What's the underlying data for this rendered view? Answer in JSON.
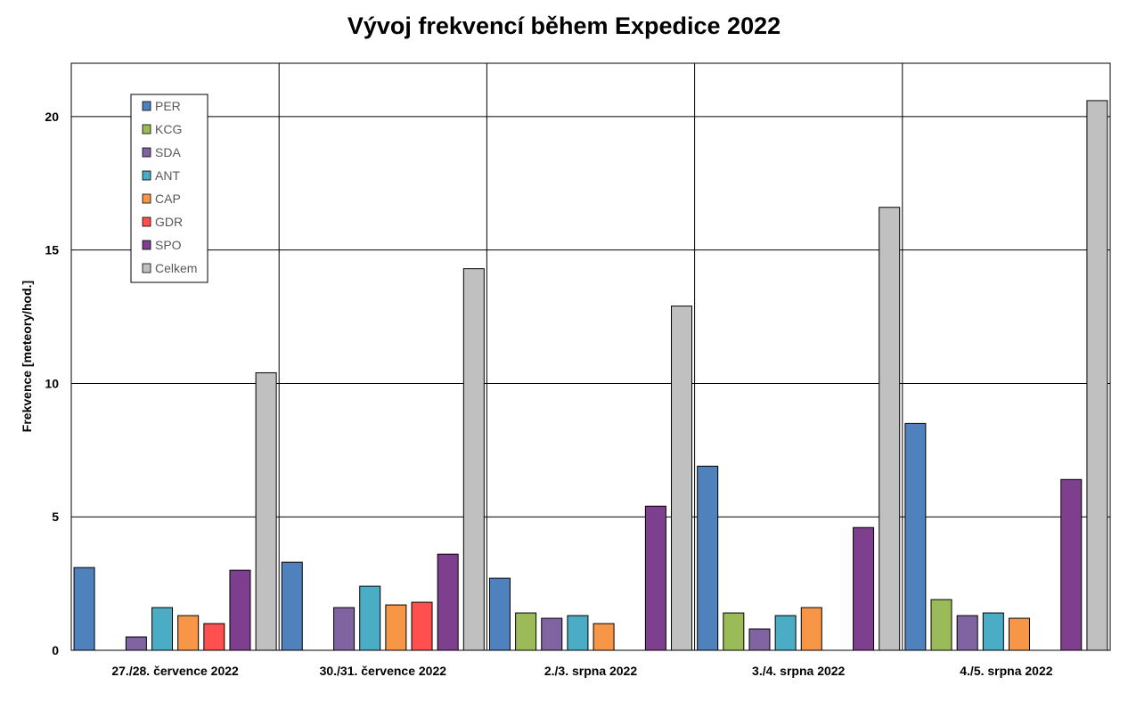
{
  "chart_data": {
    "type": "bar",
    "title": "Vývoj frekvencí během Expedice 2022",
    "xlabel": "",
    "ylabel": "Frekvence [meteory/hod.]",
    "ylim": [
      0,
      22
    ],
    "yticks": [
      0,
      5,
      10,
      15,
      20
    ],
    "grid": true,
    "legend_position": "top-left",
    "categories": [
      "27./28. července 2022",
      "30./31. července 2022",
      "2./3. srpna 2022",
      "3./4. srpna 2022",
      "4./5. srpna 2022"
    ],
    "series": [
      {
        "name": "PER",
        "color": "#4f81bd",
        "values": [
          3.1,
          3.3,
          2.7,
          6.9,
          8.5
        ]
      },
      {
        "name": "KCG",
        "color": "#9bbb59",
        "values": [
          null,
          null,
          1.4,
          1.4,
          1.9
        ]
      },
      {
        "name": "SDA",
        "color": "#8064a2",
        "values": [
          0.5,
          1.6,
          1.2,
          0.8,
          1.3
        ]
      },
      {
        "name": "ANT",
        "color": "#4bacc6",
        "values": [
          1.6,
          2.4,
          1.3,
          1.3,
          1.4
        ]
      },
      {
        "name": "CAP",
        "color": "#f79646",
        "values": [
          1.3,
          1.7,
          1.0,
          1.6,
          1.2
        ]
      },
      {
        "name": "GDR",
        "color": "#ff4f4f",
        "values": [
          1.0,
          1.8,
          null,
          null,
          null
        ]
      },
      {
        "name": "SPO",
        "color": "#7f3f8f",
        "values": [
          3.0,
          3.6,
          5.4,
          4.6,
          6.4
        ]
      },
      {
        "name": "Celkem",
        "color": "#c0c0c0",
        "values": [
          10.4,
          14.3,
          12.9,
          16.6,
          20.6
        ]
      }
    ]
  }
}
